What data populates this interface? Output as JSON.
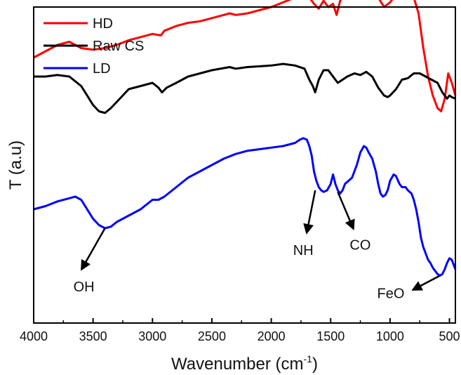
{
  "chart_data": {
    "type": "line",
    "xlabel": "Wavenumber (cm",
    "xlabel_sup": "-1",
    "xlabel_close": ")",
    "ylabel": "T (a.u)",
    "xlim": [
      4000,
      450
    ],
    "xticks": [
      "4000",
      "3500",
      "3000",
      "2500",
      "2000",
      "1500",
      "1000",
      "500"
    ],
    "yticks_shown": false,
    "legend_position": "top-left",
    "series": [
      {
        "name": "HD",
        "color": "#ff0000",
        "x": [
          4000,
          3900,
          3800,
          3700,
          3600,
          3500,
          3400,
          3300,
          3200,
          3100,
          3000,
          2930,
          2900,
          2800,
          2700,
          2600,
          2500,
          2400,
          2350,
          2300,
          2200,
          2000,
          1900,
          1800,
          1750,
          1720,
          1680,
          1640,
          1600,
          1560,
          1520,
          1480,
          1450,
          1420,
          1380,
          1340,
          1300,
          1250,
          1200,
          1150,
          1100,
          1050,
          1000,
          950,
          900,
          850,
          800,
          760,
          720,
          680,
          640,
          600,
          570,
          540,
          510,
          480,
          450
        ],
        "y": [
          0.84,
          0.86,
          0.88,
          0.89,
          0.87,
          0.865,
          0.87,
          0.88,
          0.895,
          0.905,
          0.915,
          0.91,
          0.925,
          0.94,
          0.95,
          0.955,
          0.965,
          0.975,
          0.98,
          0.975,
          0.98,
          1.0,
          1.015,
          1.03,
          1.06,
          1.055,
          1.03,
          1.01,
          0.995,
          1.02,
          1.0,
          1.01,
          0.975,
          1.02,
          1.045,
          1.03,
          1.05,
          1.075,
          1.085,
          1.07,
          1.03,
          1.0,
          1.015,
          1.04,
          1.045,
          1.035,
          1.03,
          0.98,
          0.87,
          0.78,
          0.72,
          0.68,
          0.67,
          0.71,
          0.79,
          0.76,
          0.72
        ]
      },
      {
        "name": "Raw CS",
        "color": "#000000",
        "x": [
          4000,
          3900,
          3800,
          3700,
          3600,
          3550,
          3500,
          3450,
          3400,
          3350,
          3300,
          3250,
          3200,
          3100,
          3000,
          2950,
          2920,
          2880,
          2800,
          2700,
          2500,
          2350,
          2300,
          2200,
          2000,
          1900,
          1800,
          1720,
          1680,
          1650,
          1630,
          1600,
          1560,
          1520,
          1480,
          1440,
          1400,
          1360,
          1300,
          1250,
          1200,
          1150,
          1100,
          1050,
          1020,
          1000,
          950,
          900,
          850,
          800,
          750,
          700,
          650,
          600,
          560,
          520,
          500,
          480,
          450
        ],
        "y": [
          0.78,
          0.78,
          0.785,
          0.78,
          0.75,
          0.72,
          0.69,
          0.67,
          0.665,
          0.68,
          0.7,
          0.72,
          0.74,
          0.75,
          0.76,
          0.745,
          0.73,
          0.745,
          0.76,
          0.78,
          0.8,
          0.81,
          0.805,
          0.81,
          0.815,
          0.82,
          0.815,
          0.805,
          0.77,
          0.75,
          0.73,
          0.77,
          0.8,
          0.8,
          0.78,
          0.76,
          0.77,
          0.78,
          0.79,
          0.785,
          0.795,
          0.78,
          0.745,
          0.72,
          0.715,
          0.72,
          0.74,
          0.77,
          0.775,
          0.79,
          0.79,
          0.78,
          0.77,
          0.76,
          0.73,
          0.71,
          0.72,
          0.715,
          0.71
        ]
      },
      {
        "name": "LD",
        "color": "#0000ff",
        "x": [
          4000,
          3900,
          3800,
          3700,
          3650,
          3600,
          3550,
          3500,
          3450,
          3400,
          3350,
          3300,
          3200,
          3100,
          3000,
          2950,
          2900,
          2800,
          2700,
          2600,
          2500,
          2400,
          2300,
          2200,
          2100,
          2000,
          1900,
          1800,
          1760,
          1730,
          1700,
          1680,
          1660,
          1640,
          1620,
          1600,
          1580,
          1560,
          1530,
          1500,
          1480,
          1460,
          1440,
          1420,
          1400,
          1380,
          1350,
          1320,
          1280,
          1250,
          1220,
          1200,
          1180,
          1150,
          1120,
          1100,
          1080,
          1060,
          1040,
          1020,
          1000,
          970,
          950,
          920,
          900,
          870,
          850,
          820,
          800,
          780,
          760,
          740,
          720,
          700,
          680,
          660,
          640,
          620,
          600,
          580,
          560,
          540,
          520,
          500,
          480,
          460,
          450
        ],
        "y": [
          0.36,
          0.37,
          0.385,
          0.395,
          0.4,
          0.39,
          0.36,
          0.33,
          0.31,
          0.3,
          0.305,
          0.32,
          0.34,
          0.36,
          0.39,
          0.39,
          0.4,
          0.43,
          0.46,
          0.48,
          0.5,
          0.52,
          0.535,
          0.545,
          0.55,
          0.555,
          0.56,
          0.57,
          0.58,
          0.585,
          0.58,
          0.56,
          0.53,
          0.48,
          0.45,
          0.43,
          0.42,
          0.415,
          0.42,
          0.44,
          0.47,
          0.44,
          0.42,
          0.41,
          0.42,
          0.44,
          0.45,
          0.46,
          0.5,
          0.54,
          0.56,
          0.555,
          0.54,
          0.52,
          0.48,
          0.44,
          0.41,
          0.4,
          0.405,
          0.42,
          0.45,
          0.47,
          0.465,
          0.44,
          0.43,
          0.43,
          0.42,
          0.41,
          0.39,
          0.36,
          0.32,
          0.27,
          0.24,
          0.22,
          0.2,
          0.19,
          0.175,
          0.165,
          0.155,
          0.15,
          0.155,
          0.17,
          0.19,
          0.205,
          0.2,
          0.18,
          0.17
        ]
      }
    ],
    "annotations": [
      {
        "text": "OH",
        "x": 3400,
        "y": 0.3
      },
      {
        "text": "NH",
        "x": 1630,
        "y": 0.42
      },
      {
        "text": "CO",
        "x": 1440,
        "y": 0.415
      },
      {
        "text": "FeO",
        "x": 580,
        "y": 0.15
      }
    ]
  }
}
